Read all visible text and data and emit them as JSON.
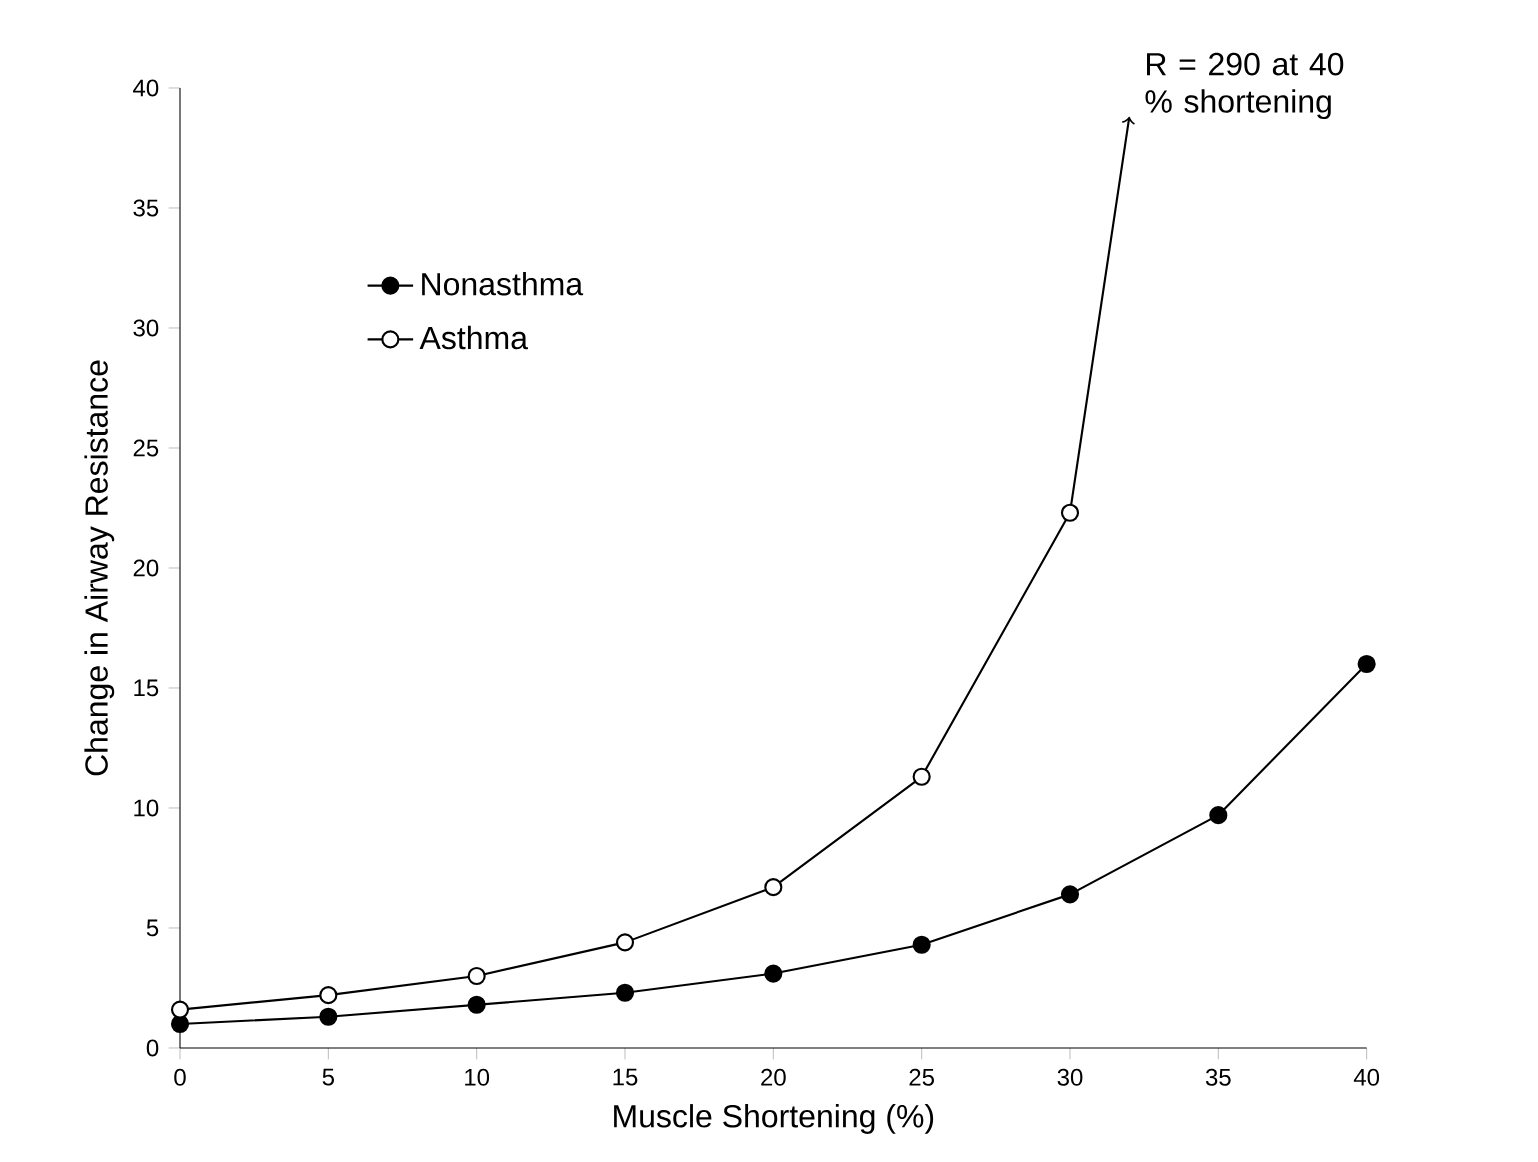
{
  "chart_data": {
    "type": "line",
    "xlabel": "Muscle Shortening (%)",
    "ylabel": "Change in Airway Resistance",
    "x": [
      0,
      5,
      10,
      15,
      20,
      25,
      30,
      35,
      40
    ],
    "series": [
      {
        "name": "Nonasthma",
        "color": "#000000",
        "values": [
          1.0,
          1.3,
          1.8,
          2.3,
          3.1,
          4.3,
          6.4,
          9.7,
          16.0
        ]
      },
      {
        "name": "Asthma",
        "color": "#000000",
        "values": [
          1.6,
          2.2,
          3.0,
          4.4,
          6.7,
          11.3,
          22.3,
          null,
          null
        ]
      }
    ],
    "annotations": [
      {
        "text": "R = 290 at 40 % shortening",
        "x": 30,
        "y": 22.3
      }
    ],
    "xlim": [
      0,
      40
    ],
    "ylim": [
      0,
      40
    ],
    "xticks": [
      0,
      5,
      10,
      15,
      20,
      25,
      30,
      35,
      40
    ],
    "yticks": [
      0,
      5,
      10,
      15,
      20,
      25,
      30,
      35,
      40
    ],
    "grid": false,
    "legend": "top left",
    "marker": "circle",
    "line_style": "solid"
  }
}
